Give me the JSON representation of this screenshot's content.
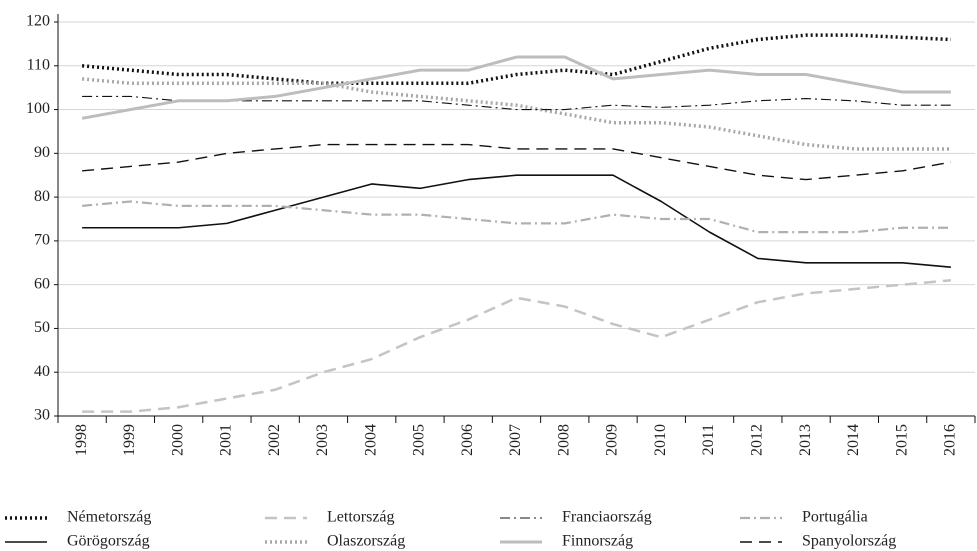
{
  "chart_data": {
    "type": "line",
    "categories": [
      "1998",
      "1999",
      "2000",
      "2001",
      "2002",
      "2003",
      "2004",
      "2005",
      "2006",
      "2007",
      "2008",
      "2009",
      "2010",
      "2011",
      "2012",
      "2013",
      "2014",
      "2015",
      "2016"
    ],
    "ylim": [
      30,
      120
    ],
    "yticks": [
      30,
      40,
      50,
      60,
      70,
      80,
      90,
      100,
      110,
      120
    ],
    "grid": true,
    "legend": "bottom",
    "series": [
      {
        "name": "Németország",
        "color": "#111111",
        "line_style": "dotted",
        "line_width": 3.5,
        "values": [
          110,
          109,
          108,
          108,
          107,
          106,
          106,
          106,
          106,
          108,
          109,
          108,
          111,
          114,
          116,
          117,
          117,
          116.5,
          116
        ]
      },
      {
        "name": "Görögország",
        "color": "#111111",
        "line_style": "solid",
        "line_width": 1.6,
        "values": [
          73,
          73,
          73,
          74,
          77,
          80,
          83,
          82,
          84,
          85,
          85,
          85,
          79,
          72,
          66,
          65,
          65,
          65,
          64
        ]
      },
      {
        "name": "Lettország",
        "color": "#c4c4c4",
        "line_style": "dashed",
        "line_width": 2.5,
        "values": [
          31,
          31,
          32,
          34,
          36,
          40,
          43,
          48,
          52,
          57,
          55,
          51,
          48,
          52,
          56,
          58,
          59,
          60,
          61
        ]
      },
      {
        "name": "Olaszország",
        "color": "#a8a8a8",
        "line_style": "dotted",
        "line_width": 3.5,
        "values": [
          107,
          106,
          106,
          106,
          106,
          106,
          104,
          103,
          102,
          101,
          99,
          97,
          97,
          96,
          94,
          92,
          91,
          91,
          91
        ]
      },
      {
        "name": "Franciaország",
        "color": "#111111",
        "line_style": "dashdot",
        "line_width": 1.1,
        "values": [
          103,
          103,
          102,
          102,
          102,
          102,
          102,
          102,
          101,
          100,
          100,
          101,
          100.5,
          101,
          102,
          102.5,
          102,
          101,
          101
        ]
      },
      {
        "name": "Finnország",
        "color": "#bdbdbd",
        "line_style": "solid",
        "line_width": 3,
        "values": [
          98,
          100,
          102,
          102,
          103,
          105,
          107,
          109,
          109,
          112,
          112,
          107,
          108,
          109,
          108,
          108,
          106,
          104,
          104
        ]
      },
      {
        "name": "Portugália",
        "color": "#b0b0b0",
        "line_style": "dashdot",
        "line_width": 2.2,
        "values": [
          78,
          79,
          78,
          78,
          78,
          77,
          76,
          76,
          75,
          74,
          74,
          76,
          75,
          75,
          72,
          72,
          72,
          73,
          73
        ]
      },
      {
        "name": "Spanyolország",
        "color": "#111111",
        "line_style": "dashed",
        "line_width": 1.4,
        "values": [
          86,
          87,
          88,
          90,
          91,
          92,
          92,
          92,
          92,
          91,
          91,
          91,
          89,
          87,
          85,
          84,
          85,
          86,
          88
        ]
      }
    ]
  }
}
